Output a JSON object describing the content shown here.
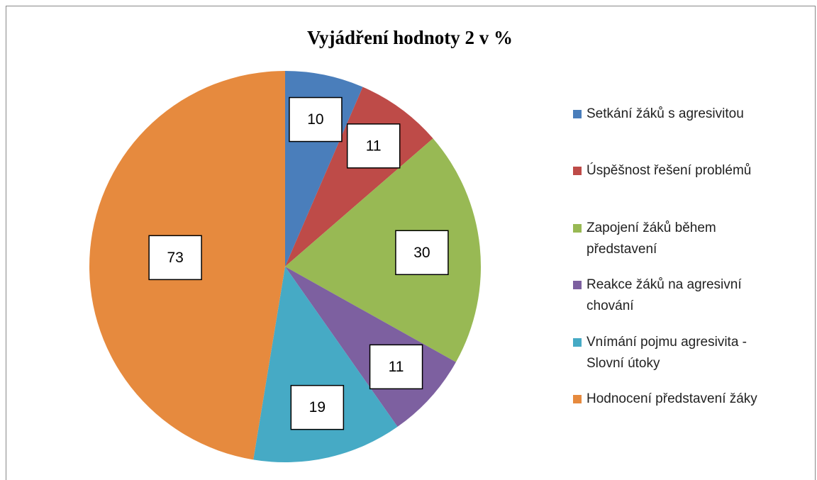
{
  "chart_data": {
    "type": "pie",
    "title": "Vyjádření hodnoty 2 v %",
    "categories": [
      "Setkání žáků s agresivitou",
      "Úspěšnost řešení problémů",
      "Zapojení žáků během představení",
      "Reakce žáků na agresivní chování",
      "Vnímání pojmu agresivita - Slovní útoky",
      "Hodnocení představení žáky"
    ],
    "values": [
      10,
      11,
      30,
      11,
      19,
      73
    ],
    "colors": [
      "#4a7ebb",
      "#be4b48",
      "#98b954",
      "#7d60a0",
      "#46aac5",
      "#e68a3e"
    ],
    "legend": "right"
  }
}
